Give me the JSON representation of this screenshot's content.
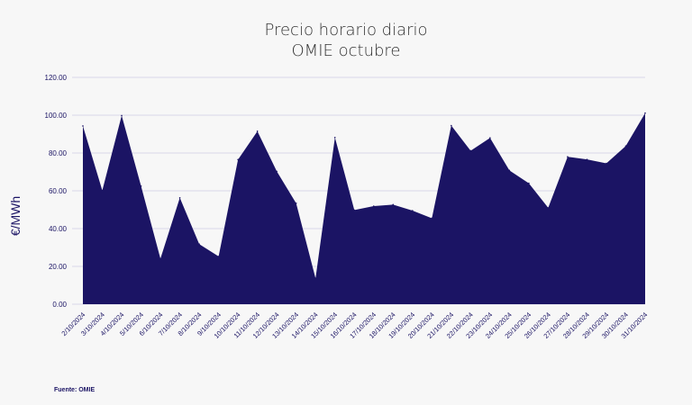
{
  "title_line1": "Precio horario diario",
  "title_line2": "OMIE octubre",
  "source": "Fuente: OMIE",
  "colors": {
    "area_fill": "#1b1464",
    "gridline": "#d8d7ea",
    "text": "#1b1464",
    "title_text": "#333333",
    "background": "#f7f7f7"
  },
  "chart_data": {
    "type": "area",
    "title": "Precio horario diario OMIE octubre",
    "xlabel": "",
    "ylabel": "€/MWh",
    "ylim": [
      0,
      120
    ],
    "yticks": [
      "0.00",
      "20.00",
      "40.00",
      "60.00",
      "80.00",
      "100.00",
      "120.00"
    ],
    "grid": true,
    "legend": "none",
    "categories": [
      "2/10/2024",
      "3/10/2024",
      "4/10/2024",
      "5/10/2024",
      "6/10/2024",
      "7/10/2024",
      "8/10/2024",
      "9/10/2024",
      "10/10/2024",
      "11/10/2024",
      "12/10/2024",
      "13/10/2024",
      "14/10/2024",
      "15/10/2024",
      "16/10/2024",
      "17/10/2024",
      "18/10/2024",
      "19/10/2024",
      "20/10/2024",
      "21/10/2024",
      "22/10/2024",
      "23/10/2024",
      "24/10/2024",
      "25/10/2024",
      "26/10/2024",
      "27/10/2024",
      "28/10/2024",
      "29/10/2024",
      "30/10/2024",
      "31/10/2024"
    ],
    "values": [
      94.3,
      60.2,
      99.8,
      62.5,
      24.1,
      56.3,
      31.8,
      25.3,
      76.5,
      91.5,
      70.3,
      53.4,
      13.7,
      88.2,
      49.8,
      51.9,
      52.7,
      49.5,
      45.5,
      94.5,
      81.2,
      88.0,
      70.8,
      64.0,
      51.0,
      78.0,
      76.6,
      74.5,
      83.7,
      101.1
    ]
  }
}
